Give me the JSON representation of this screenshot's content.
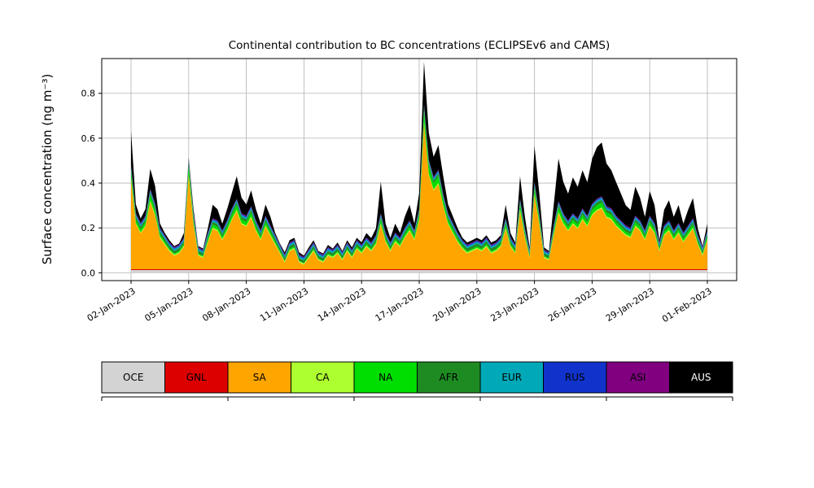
{
  "chart_data": {
    "type": "area",
    "stacked": true,
    "title": "Continental contribution to BC concentrations (ECLIPSEv6 and CAMS)",
    "ylabel": "Surface concentration (ng m⁻³)",
    "xlabel": "",
    "grid": true,
    "legend_position": "bottom",
    "ylim": [
      -0.035,
      0.955
    ],
    "y_ticks": [
      0.0,
      0.2,
      0.4,
      0.6,
      0.8
    ],
    "x_tick_labels": [
      "02-Jan-2023",
      "05-Jan-2023",
      "08-Jan-2023",
      "11-Jan-2023",
      "14-Jan-2023",
      "17-Jan-2023",
      "20-Jan-2023",
      "23-Jan-2023",
      "26-Jan-2023",
      "29-Jan-2023",
      "01-Feb-2023"
    ],
    "x_tick_day_offsets": [
      0,
      3,
      6,
      9,
      12,
      15,
      18,
      21,
      24,
      27,
      30
    ],
    "x_span_days": 30,
    "time_step_hours": 6,
    "n_points": 121,
    "series": [
      {
        "name": "OCE",
        "color": "#d3d3d3",
        "text_color": "#000000",
        "constant": 0.012
      },
      {
        "name": "GNL",
        "color": "#dd0000",
        "text_color": "#000000",
        "constant": 0.004
      },
      {
        "name": "SA",
        "color": "#ffa500",
        "text_color": "#000000",
        "values": [
          0.4,
          0.2,
          0.16,
          0.19,
          0.3,
          0.24,
          0.14,
          0.11,
          0.08,
          0.06,
          0.07,
          0.1,
          0.42,
          0.2,
          0.06,
          0.05,
          0.12,
          0.18,
          0.17,
          0.13,
          0.17,
          0.22,
          0.26,
          0.2,
          0.19,
          0.23,
          0.17,
          0.13,
          0.19,
          0.15,
          0.11,
          0.07,
          0.03,
          0.08,
          0.09,
          0.03,
          0.02,
          0.05,
          0.08,
          0.04,
          0.03,
          0.06,
          0.05,
          0.07,
          0.04,
          0.08,
          0.05,
          0.09,
          0.07,
          0.1,
          0.08,
          0.11,
          0.2,
          0.12,
          0.08,
          0.12,
          0.1,
          0.14,
          0.17,
          0.13,
          0.22,
          0.65,
          0.42,
          0.35,
          0.38,
          0.28,
          0.2,
          0.16,
          0.12,
          0.09,
          0.07,
          0.08,
          0.09,
          0.08,
          0.1,
          0.07,
          0.08,
          0.1,
          0.18,
          0.1,
          0.07,
          0.26,
          0.14,
          0.05,
          0.33,
          0.2,
          0.05,
          0.04,
          0.15,
          0.25,
          0.2,
          0.17,
          0.2,
          0.18,
          0.22,
          0.19,
          0.24,
          0.26,
          0.27,
          0.23,
          0.22,
          0.19,
          0.17,
          0.15,
          0.14,
          0.19,
          0.17,
          0.13,
          0.19,
          0.16,
          0.08,
          0.15,
          0.17,
          0.13,
          0.16,
          0.12,
          0.15,
          0.18,
          0.11,
          0.06,
          0.13
        ]
      },
      {
        "name": "CA",
        "color": "#adff2f",
        "text_color": "#000000",
        "constant": 0.005
      },
      {
        "name": "NA",
        "color": "#00dd00",
        "text_color": "#000000",
        "values": [
          0.032,
          0.016,
          0.013,
          0.015,
          0.024,
          0.019,
          0.011,
          0.009,
          0.006,
          0.005,
          0.006,
          0.008,
          0.034,
          0.016,
          0.005,
          0.004,
          0.01,
          0.014,
          0.014,
          0.01,
          0.014,
          0.018,
          0.021,
          0.016,
          0.015,
          0.018,
          0.014,
          0.01,
          0.015,
          0.012,
          0.009,
          0.006,
          0.002,
          0.006,
          0.007,
          0.002,
          0.002,
          0.004,
          0.006,
          0.003,
          0.002,
          0.005,
          0.004,
          0.006,
          0.003,
          0.006,
          0.004,
          0.007,
          0.006,
          0.008,
          0.006,
          0.009,
          0.016,
          0.01,
          0.006,
          0.01,
          0.008,
          0.011,
          0.014,
          0.01,
          0.018,
          0.052,
          0.034,
          0.028,
          0.03,
          0.022,
          0.016,
          0.013,
          0.01,
          0.007,
          0.006,
          0.006,
          0.007,
          0.006,
          0.008,
          0.006,
          0.006,
          0.008,
          0.014,
          0.008,
          0.006,
          0.021,
          0.011,
          0.004,
          0.026,
          0.016,
          0.004,
          0.003,
          0.012,
          0.02,
          0.016,
          0.014,
          0.016,
          0.014,
          0.018,
          0.015,
          0.019,
          0.021,
          0.022,
          0.018,
          0.018,
          0.015,
          0.014,
          0.012,
          0.011,
          0.015,
          0.014,
          0.01,
          0.015,
          0.013,
          0.006,
          0.012,
          0.014,
          0.01,
          0.013,
          0.01,
          0.012,
          0.014,
          0.009,
          0.005,
          0.01
        ]
      },
      {
        "name": "AFR",
        "color": "#1e8b22",
        "text_color": "#000000",
        "constant": 0.012
      },
      {
        "name": "EUR",
        "color": "#00a9b8",
        "text_color": "#000000",
        "constant": 0.008
      },
      {
        "name": "RUS",
        "color": "#1133cc",
        "text_color": "#000000",
        "constant": 0.005
      },
      {
        "name": "ASI",
        "color": "#800080",
        "text_color": "#000000",
        "constant": 0.003
      },
      {
        "name": "AUS",
        "color": "#000000",
        "text_color": "#ffffff",
        "values": [
          0.15,
          0.04,
          0.02,
          0.03,
          0.09,
          0.08,
          0.02,
          0.01,
          0.01,
          0.005,
          0.005,
          0.02,
          0.01,
          0.02,
          0.005,
          0.005,
          0.02,
          0.06,
          0.05,
          0.03,
          0.05,
          0.07,
          0.1,
          0.07,
          0.05,
          0.07,
          0.05,
          0.03,
          0.05,
          0.04,
          0.01,
          0.005,
          0.01,
          0.01,
          0.01,
          0.01,
          0.005,
          0.01,
          0.01,
          0.005,
          0.005,
          0.01,
          0.005,
          0.01,
          0.005,
          0.01,
          0.01,
          0.01,
          0.01,
          0.02,
          0.02,
          0.03,
          0.14,
          0.04,
          0.02,
          0.04,
          0.02,
          0.05,
          0.07,
          0.03,
          0.07,
          0.19,
          0.12,
          0.09,
          0.11,
          0.08,
          0.04,
          0.03,
          0.02,
          0.01,
          0.01,
          0.01,
          0.01,
          0.01,
          0.01,
          0.01,
          0.01,
          0.01,
          0.06,
          0.02,
          0.01,
          0.1,
          0.05,
          0.01,
          0.16,
          0.09,
          0.01,
          0.005,
          0.09,
          0.19,
          0.14,
          0.12,
          0.16,
          0.14,
          0.17,
          0.15,
          0.2,
          0.23,
          0.24,
          0.19,
          0.17,
          0.15,
          0.12,
          0.09,
          0.08,
          0.13,
          0.1,
          0.06,
          0.11,
          0.08,
          0.01,
          0.07,
          0.09,
          0.06,
          0.08,
          0.04,
          0.07,
          0.09,
          0.03,
          0.005,
          0.03
        ]
      }
    ]
  }
}
